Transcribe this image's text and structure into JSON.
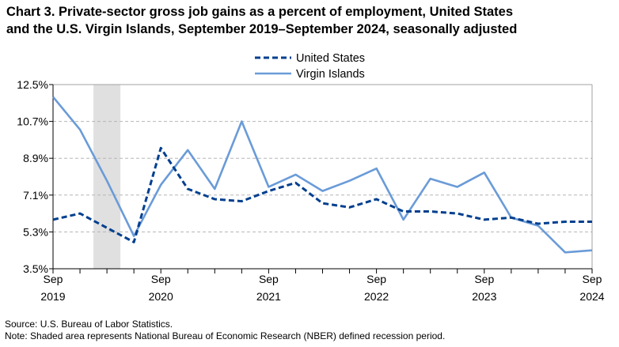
{
  "chart_data": {
    "type": "line",
    "title_line1": "Chart 3. Private-sector gross job gains as a percent of employment, United States",
    "title_line2": "and the U.S. Virgin Islands, September 2019–September 2024, seasonally adjusted",
    "x": [
      "Sep 2019",
      "Dec 2019",
      "Mar 2020",
      "Jun 2020",
      "Sep 2020",
      "Dec 2020",
      "Mar 2021",
      "Jun 2021",
      "Sep 2021",
      "Dec 2021",
      "Mar 2022",
      "Jun 2022",
      "Sep 2022",
      "Dec 2022",
      "Mar 2023",
      "Jun 2023",
      "Sep 2023",
      "Dec 2023",
      "Mar 2024",
      "Jun 2024",
      "Sep 2024"
    ],
    "x_tick_labels": [
      {
        "index": 0,
        "month": "Sep",
        "year": "2019"
      },
      {
        "index": 4,
        "month": "Sep",
        "year": "2020"
      },
      {
        "index": 8,
        "month": "Sep",
        "year": "2021"
      },
      {
        "index": 12,
        "month": "Sep",
        "year": "2022"
      },
      {
        "index": 16,
        "month": "Sep",
        "year": "2023"
      },
      {
        "index": 20,
        "month": "Sep",
        "year": "2024"
      }
    ],
    "series": [
      {
        "name": "United States",
        "style": "dashed",
        "color": "#003f8f",
        "values": [
          5.9,
          6.2,
          5.5,
          4.8,
          9.4,
          7.4,
          6.9,
          6.8,
          7.3,
          7.7,
          6.7,
          6.5,
          6.9,
          6.3,
          6.3,
          6.2,
          5.9,
          6.0,
          5.7,
          5.8,
          5.8
        ]
      },
      {
        "name": "Virgin Islands",
        "style": "solid",
        "color": "#6a9bd8",
        "values": [
          11.9,
          10.3,
          7.8,
          5.1,
          7.6,
          9.3,
          7.4,
          10.7,
          7.5,
          8.1,
          7.3,
          7.8,
          8.4,
          5.9,
          7.9,
          7.5,
          8.2,
          6.0,
          5.6,
          4.3,
          4.4
        ]
      }
    ],
    "y_ticks": [
      "3.5%",
      "5.3%",
      "7.1%",
      "8.9%",
      "10.7%",
      "12.5%"
    ],
    "ylim": [
      3.5,
      12.5
    ],
    "grid": true,
    "legend_placement": "top-center",
    "recession_shade_index_range": [
      1.5,
      2.5
    ],
    "xlabel": "",
    "ylabel": ""
  },
  "notes": {
    "source": "Source: U.S. Bureau of Labor Statistics.",
    "note": "Note: Shaded area represents National Bureau of Economic Research (NBER) defined recession period."
  }
}
